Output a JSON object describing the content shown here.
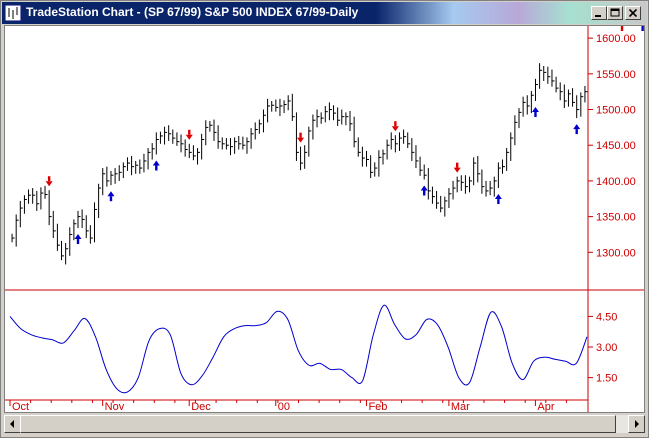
{
  "window": {
    "title": "TradeStation Chart - (SP 67/99) S&P 500 INDEX 67/99-Daily"
  },
  "colors": {
    "axis": "#cc0000",
    "bars": "#000000",
    "indicator": "#0000cc",
    "sell_arrow": "#dd0000",
    "buy_arrow": "#0000cc"
  },
  "icons": {
    "app": "tradestation-chart-icon",
    "minimize": "minimize-icon",
    "maximize": "maximize-icon",
    "close": "close-icon",
    "scroll_left": "arrow-left-icon",
    "scroll_right": "arrow-right-icon"
  },
  "chart_data": [
    {
      "type": "line",
      "title": "",
      "yticks": [
        "1600.00",
        "1550.00",
        "1500.00",
        "1450.00",
        "1400.00",
        "1350.00",
        "1300.00"
      ],
      "ylim": [
        1250,
        1610
      ],
      "months": [
        "Oct",
        "Nov",
        "Dec",
        "00",
        "Feb",
        "Mar",
        "Apr"
      ],
      "series": [
        {
          "values": [
            1320,
            1345,
            1362,
            1374,
            1380,
            1380,
            1368,
            1383,
            1381,
            1350,
            1330,
            1310,
            1295,
            1305,
            1325,
            1340,
            1350,
            1346,
            1330,
            1320,
            1360,
            1390,
            1410,
            1400,
            1408,
            1410,
            1412,
            1420,
            1425,
            1420,
            1422,
            1418,
            1428,
            1440,
            1445,
            1458,
            1463,
            1468,
            1466,
            1460,
            1455,
            1452,
            1444,
            1440,
            1435,
            1440,
            1458,
            1475,
            1478,
            1468,
            1455,
            1452,
            1450,
            1448,
            1455,
            1452,
            1450,
            1455,
            1466,
            1472,
            1480,
            1492,
            1505,
            1506,
            1503,
            1505,
            1507,
            1512,
            1490,
            1440,
            1425,
            1440,
            1470,
            1485,
            1490,
            1488,
            1497,
            1500,
            1495,
            1485,
            1490,
            1490,
            1480,
            1455,
            1440,
            1432,
            1430,
            1412,
            1418,
            1433,
            1438,
            1450,
            1458,
            1452,
            1460,
            1462,
            1452,
            1440,
            1428,
            1415,
            1408,
            1386,
            1378,
            1369,
            1362,
            1372,
            1382,
            1390,
            1400,
            1398,
            1392,
            1400,
            1425,
            1410,
            1392,
            1386,
            1390,
            1400,
            1418,
            1420,
            1440,
            1460,
            1482,
            1496,
            1510,
            1505,
            1520,
            1535,
            1555,
            1552,
            1546,
            1540,
            1530,
            1525,
            1512,
            1522,
            1510,
            1500,
            1518,
            1525
          ]
        }
      ],
      "buy_signals": [
        16,
        24,
        35,
        100,
        118,
        127,
        137,
        153
      ],
      "sell_signals": [
        9,
        43,
        70,
        93,
        108,
        148
      ]
    },
    {
      "type": "line",
      "title": "",
      "yticks": [
        "4.50",
        "3.00",
        "1.50"
      ],
      "ylim": [
        0.5,
        5.6
      ],
      "series": [
        {
          "values": [
            4.5,
            3.9,
            3.6,
            3.45,
            3.35,
            3.2,
            3.8,
            4.4,
            3.5,
            1.9,
            0.95,
            0.8,
            1.5,
            3.3,
            3.9,
            3.6,
            1.7,
            1.15,
            1.6,
            2.5,
            3.5,
            3.9,
            4.05,
            4.05,
            4.2,
            4.75,
            4.35,
            2.8,
            2.1,
            2.2,
            1.9,
            1.9,
            1.5,
            1.35,
            3.6,
            5.05,
            4.1,
            3.4,
            3.6,
            4.35,
            4.1,
            3.0,
            1.5,
            1.25,
            3.0,
            4.7,
            4.0,
            2.2,
            1.4,
            2.3,
            2.5,
            2.4,
            2.3,
            2.2,
            3.5
          ]
        }
      ]
    }
  ]
}
